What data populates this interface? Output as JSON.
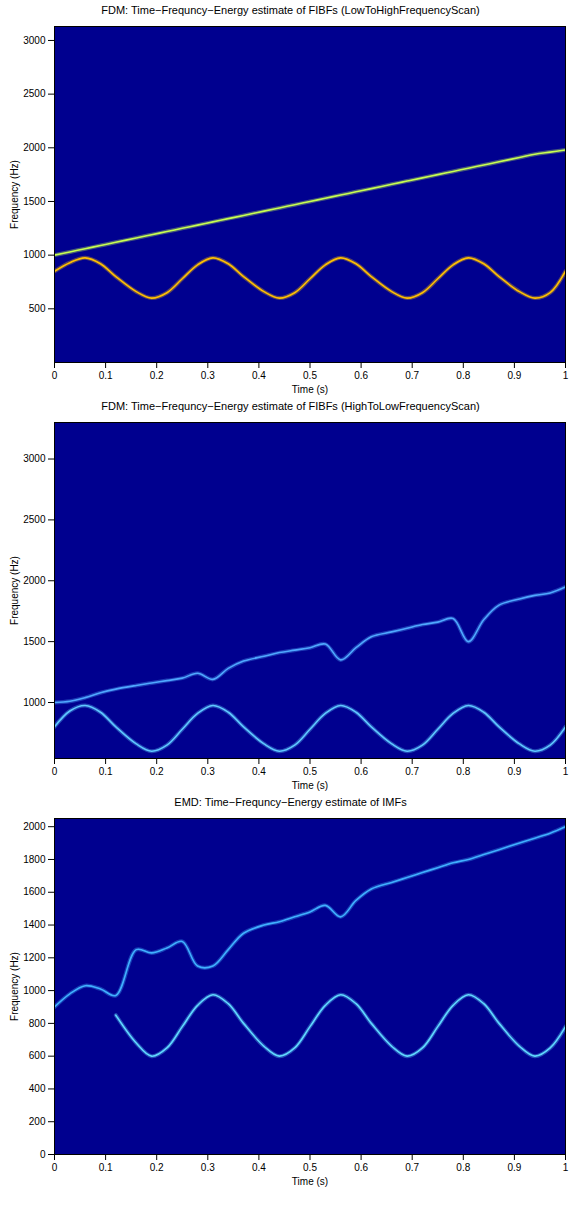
{
  "chart_data": [
    {
      "type": "line",
      "title": "FDM: Time−Frequncy−Energy estimate of FIBFs (LowToHighFrequencyScan)",
      "x_label": "Time (s)",
      "y_label": "Frequency (Hz)",
      "xlim": [
        0,
        1
      ],
      "xticks": [
        0,
        0.1,
        0.2,
        0.3,
        0.4,
        0.5,
        0.6,
        0.7,
        0.8,
        0.9,
        1
      ],
      "ylim": [
        0,
        3130
      ],
      "yticks": [
        500,
        1000,
        1500,
        2000,
        2500,
        3000
      ],
      "x": [
        0,
        0.03,
        0.06,
        0.09,
        0.12,
        0.16,
        0.19,
        0.22,
        0.25,
        0.28,
        0.31,
        0.34,
        0.37,
        0.41,
        0.44,
        0.47,
        0.5,
        0.53,
        0.56,
        0.59,
        0.62,
        0.66,
        0.69,
        0.72,
        0.75,
        0.78,
        0.81,
        0.84,
        0.87,
        0.91,
        0.94,
        0.97,
        1
      ],
      "series": [
        {
          "color": "#c8ff50",
          "values": [
            1000,
            1030,
            1060,
            1090,
            1120,
            1160,
            1190,
            1220,
            1250,
            1280,
            1310,
            1340,
            1370,
            1410,
            1440,
            1470,
            1500,
            1530,
            1560,
            1590,
            1620,
            1660,
            1690,
            1720,
            1750,
            1780,
            1810,
            1840,
            1870,
            1910,
            1940,
            1960,
            1980
          ]
        },
        {
          "color": "#ffc000",
          "values": [
            850,
            930,
            975,
            920,
            800,
            660,
            600,
            650,
            780,
            910,
            975,
            920,
            800,
            660,
            600,
            650,
            780,
            910,
            975,
            920,
            800,
            660,
            600,
            650,
            780,
            910,
            975,
            920,
            800,
            660,
            600,
            650,
            850
          ]
        }
      ]
    },
    {
      "type": "line",
      "title": "FDM: Time−Frequncy−Energy estimate of FIBFs (HighToLowFrequencyScan)",
      "x_label": "Time (s)",
      "y_label": "Frequency (Hz)",
      "xlim": [
        0,
        1
      ],
      "xticks": [
        0,
        0.1,
        0.2,
        0.3,
        0.4,
        0.5,
        0.6,
        0.7,
        0.8,
        0.9,
        1
      ],
      "ylim": [
        540,
        3300
      ],
      "yticks": [
        1000,
        1500,
        2000,
        2500,
        3000
      ],
      "x": [
        0,
        0.03,
        0.06,
        0.09,
        0.12,
        0.16,
        0.19,
        0.22,
        0.25,
        0.28,
        0.31,
        0.34,
        0.37,
        0.41,
        0.44,
        0.47,
        0.5,
        0.53,
        0.56,
        0.59,
        0.62,
        0.66,
        0.69,
        0.72,
        0.75,
        0.78,
        0.81,
        0.84,
        0.87,
        0.91,
        0.94,
        0.97,
        1
      ],
      "series": [
        {
          "color": "#4fa8ff",
          "values": [
            1000,
            1010,
            1040,
            1080,
            1110,
            1140,
            1160,
            1180,
            1200,
            1240,
            1190,
            1280,
            1340,
            1380,
            1410,
            1430,
            1450,
            1480,
            1350,
            1450,
            1540,
            1580,
            1610,
            1640,
            1660,
            1690,
            1500,
            1680,
            1800,
            1850,
            1880,
            1900,
            1950
          ]
        },
        {
          "color": "#5fc8ff",
          "values": [
            800,
            930,
            975,
            920,
            800,
            660,
            600,
            650,
            780,
            910,
            975,
            920,
            800,
            660,
            600,
            650,
            780,
            910,
            975,
            920,
            800,
            660,
            600,
            650,
            780,
            910,
            975,
            920,
            800,
            660,
            600,
            650,
            800
          ]
        }
      ]
    },
    {
      "type": "line",
      "title": "EMD: Time−Frequncy−Energy estimate of IMFs",
      "x_label": "Time (s)",
      "y_label": "Frequency (Hz)",
      "xlim": [
        0,
        1
      ],
      "xticks": [
        0,
        0.1,
        0.2,
        0.3,
        0.4,
        0.5,
        0.6,
        0.7,
        0.8,
        0.9,
        1
      ],
      "ylim": [
        0,
        2050
      ],
      "yticks": [
        0,
        200,
        400,
        600,
        800,
        1000,
        1200,
        1400,
        1600,
        1800,
        2000
      ],
      "x": [
        0,
        0.03,
        0.06,
        0.09,
        0.12,
        0.16,
        0.19,
        0.22,
        0.25,
        0.28,
        0.31,
        0.34,
        0.37,
        0.41,
        0.44,
        0.47,
        0.5,
        0.53,
        0.56,
        0.59,
        0.62,
        0.66,
        0.69,
        0.72,
        0.75,
        0.78,
        0.81,
        0.84,
        0.87,
        0.91,
        0.94,
        0.97,
        1
      ],
      "series": [
        {
          "color": "#40b0ff",
          "values": [
            900,
            980,
            1030,
            1010,
            970,
            1250,
            1230,
            1260,
            1300,
            1150,
            1150,
            1250,
            1350,
            1400,
            1420,
            1450,
            1480,
            1520,
            1450,
            1550,
            1620,
            1660,
            1690,
            1720,
            1750,
            1780,
            1800,
            1830,
            1860,
            1900,
            1930,
            1960,
            2000
          ]
        },
        {
          "color": "#60d8ff",
          "values": [
            null,
            null,
            null,
            null,
            850,
            680,
            600,
            650,
            780,
            910,
            975,
            920,
            800,
            660,
            600,
            650,
            780,
            910,
            975,
            920,
            800,
            660,
            600,
            650,
            780,
            910,
            975,
            920,
            800,
            660,
            600,
            650,
            780
          ]
        }
      ]
    }
  ]
}
